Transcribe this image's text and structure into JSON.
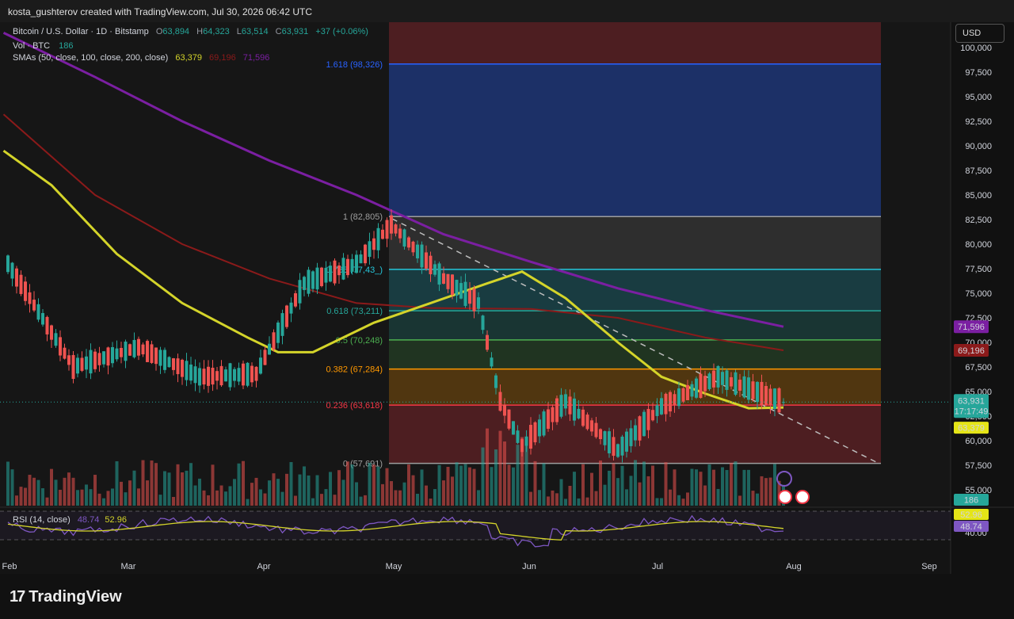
{
  "header": {
    "attribution": "kosta_gushterov created with TradingView.com, Jul 30, 2026 06:42 UTC"
  },
  "legend": {
    "symbol": "Bitcoin / U.S. Dollar · 1D · Bitstamp",
    "o_label": "O",
    "o_value": "63,894",
    "h_label": "H",
    "h_value": "64,323",
    "l_label": "L",
    "l_value": "63,514",
    "c_label": "C",
    "c_value": "63,931",
    "change": "+37 (+0.06%)",
    "vol_label": "Vol · BTC",
    "vol_value": "186",
    "sma_label": "SMAs (50, close, 100, close, 200, close)",
    "sma50": "63,379",
    "sma100": "69,196",
    "sma200": "71,596",
    "rsi_label": "RSI (14, close)",
    "rsi_value": "48.74",
    "rsi_ma": "52.96"
  },
  "currency_button": "USD",
  "price_axis": [
    "100,000",
    "97,500",
    "95,000",
    "92,500",
    "90,000",
    "87,500",
    "85,000",
    "82,500",
    "80,000",
    "77,500",
    "75,000",
    "72,500",
    "70,000",
    "67,500",
    "65,000",
    "62,500",
    "60,000",
    "57,500",
    "55,000"
  ],
  "rsi_axis": [
    "40.00"
  ],
  "time_axis": [
    "Feb",
    "Mar",
    "Apr",
    "May",
    "Jun",
    "Jul",
    "Aug",
    "Sep"
  ],
  "badges": {
    "price": "63,931",
    "countdown": "17:17:49",
    "sma50": "63,379",
    "sma200": "71,596",
    "sma100": "69,196",
    "volume": "186",
    "rsi_ma": "52.96",
    "rsi": "48.74"
  },
  "fib_levels": [
    {
      "label": "1.618 (98,326)",
      "price": 98326,
      "color": "#2962ff"
    },
    {
      "label": "1 (82,805)",
      "price": 82805,
      "color": "#9e9e9e"
    },
    {
      "label": "0.786 (77,43_)",
      "price": 77430,
      "color": "#26c6da"
    },
    {
      "label": "0.618 (73,211)",
      "price": 73211,
      "color": "#26a69a"
    },
    {
      "label": "0.5 (70,248)",
      "price": 70248,
      "color": "#4caf50"
    },
    {
      "label": "0.382 (67,284)",
      "price": 67284,
      "color": "#ff9800"
    },
    {
      "label": "0.236 (63,618)",
      "price": 63618,
      "color": "#f23645"
    },
    {
      "label": "0 (57,691)",
      "price": 57691,
      "color": "#9e9e9e"
    }
  ],
  "colors": {
    "up": "#26a69a",
    "down": "#ef5350",
    "sma50": "#d4d42a",
    "sma100": "#8b1a1a",
    "sma200": "#7b1fa2",
    "rsi": "#7e57c2"
  },
  "brand": "TradingView",
  "chart_data": {
    "type": "candlestick",
    "title": "Bitcoin / U.S. Dollar · 1D · Bitstamp",
    "ylim": [
      55000,
      101000
    ],
    "series": [
      {
        "name": "SMA 50",
        "values_sampled": [
          [
            -1,
            89500
          ],
          [
            10,
            86000
          ],
          [
            25,
            79000
          ],
          [
            40,
            74000
          ],
          [
            55,
            70500
          ],
          [
            62,
            69000
          ],
          [
            70,
            69000
          ],
          [
            84,
            72000
          ],
          [
            97,
            74000
          ],
          [
            110,
            76000
          ],
          [
            118,
            77200
          ],
          [
            128,
            74500
          ],
          [
            140,
            70000
          ],
          [
            150,
            66500
          ],
          [
            160,
            64800
          ],
          [
            170,
            63300
          ],
          [
            178,
            63379
          ]
        ]
      },
      {
        "name": "SMA 100",
        "values_sampled": [
          [
            -1,
            93200
          ],
          [
            20,
            85000
          ],
          [
            40,
            80000
          ],
          [
            60,
            76500
          ],
          [
            80,
            74000
          ],
          [
            97,
            73500
          ],
          [
            120,
            73400
          ],
          [
            140,
            72500
          ],
          [
            160,
            70500
          ],
          [
            178,
            69196
          ]
        ]
      },
      {
        "name": "SMA 200",
        "values_sampled": [
          [
            -1,
            101500
          ],
          [
            20,
            97000
          ],
          [
            40,
            92500
          ],
          [
            60,
            88500
          ],
          [
            80,
            85000
          ],
          [
            100,
            81000
          ],
          [
            120,
            78200
          ],
          [
            140,
            75500
          ],
          [
            160,
            73300
          ],
          [
            178,
            71596
          ]
        ]
      }
    ],
    "candles_sampled": [
      {
        "t": 0,
        "o": 79000,
        "h": 80500,
        "l": 77000,
        "c": 78000
      },
      {
        "t": 15,
        "o": 66500,
        "h": 68500,
        "l": 64500,
        "c": 67500
      },
      {
        "t": 30,
        "o": 70500,
        "h": 72500,
        "l": 68500,
        "c": 69500
      },
      {
        "t": 44,
        "o": 68000,
        "h": 69000,
        "l": 65500,
        "c": 66500
      },
      {
        "t": 57,
        "o": 65800,
        "h": 67500,
        "l": 64800,
        "c": 66800
      },
      {
        "t": 68,
        "o": 74000,
        "h": 77000,
        "l": 73000,
        "c": 76000
      },
      {
        "t": 80,
        "o": 77500,
        "h": 79000,
        "l": 76500,
        "c": 78000
      },
      {
        "t": 88,
        "o": 80500,
        "h": 82805,
        "l": 80000,
        "c": 82000
      },
      {
        "t": 100,
        "o": 77500,
        "h": 78500,
        "l": 76000,
        "c": 76500
      },
      {
        "t": 108,
        "o": 76500,
        "h": 77000,
        "l": 73500,
        "c": 74000
      },
      {
        "t": 113,
        "o": 73000,
        "h": 73500,
        "l": 63500,
        "c": 64000
      },
      {
        "t": 118,
        "o": 61000,
        "h": 62500,
        "l": 58500,
        "c": 59500
      },
      {
        "t": 128,
        "o": 65000,
        "h": 66000,
        "l": 63000,
        "c": 64000
      },
      {
        "t": 140,
        "o": 58500,
        "h": 60500,
        "l": 57691,
        "c": 59000
      },
      {
        "t": 150,
        "o": 63000,
        "h": 64500,
        "l": 62000,
        "c": 63500
      },
      {
        "t": 163,
        "o": 64500,
        "h": 67000,
        "l": 64000,
        "c": 66500
      },
      {
        "t": 178,
        "o": 63894,
        "h": 64323,
        "l": 63514,
        "c": 63931
      }
    ],
    "volume_last": 186,
    "rsi": {
      "value": 48.74,
      "ma": 52.96
    }
  }
}
